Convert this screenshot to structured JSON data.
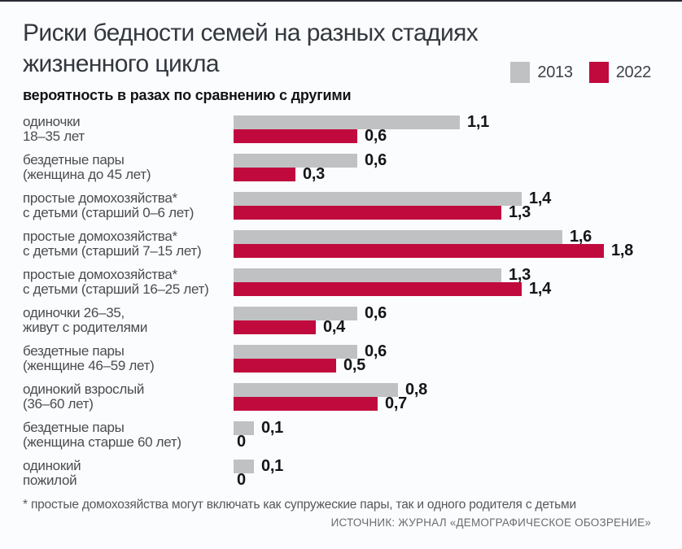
{
  "page": {
    "title_line1": "Риски бедности семей на разных стадиях",
    "title_line2": "жизненного цикла",
    "subtitle": "вероятность в разах по сравнению с другими",
    "footnote": "* простые домохозяйства могут включать как супружеские пары, так и одного родителя с детьми",
    "source": "ИСТОЧНИК: ЖУРНАЛ «ДЕМОГРАФИЧЕСКОЕ ОБОЗРЕНИЕ»",
    "colors": {
      "background": "#fbfcfd",
      "top_rule": "#272b34",
      "bar_2013": "#c0c1c3",
      "bar_2022": "#c00a3e"
    }
  },
  "legend": {
    "items": [
      {
        "label": "2013",
        "color": "#c0c1c3"
      },
      {
        "label": "2022",
        "color": "#c00a3e"
      }
    ]
  },
  "chart_data": {
    "type": "bar",
    "orientation": "horizontal",
    "title": "Риски бедности семей на разных стадиях жизненного цикла",
    "subtitle": "вероятность в разах по сравнению с другими",
    "xlim": [
      0,
      1.8
    ],
    "grid": false,
    "legend_position": "top-right",
    "categories": [
      "одиночки\n18–35 лет",
      "бездетные пары\n(женщина до 45 лет)",
      "простые домохозяйства*\nс детьми (старший 0–6 лет)",
      "простые домохозяйства*\nс детьми (старший 7–15 лет)",
      "простые домохозяйства*\nс детьми (старший 16–25 лет)",
      "одиночки 26–35,\nживут с родителями",
      "бездетные пары\n(женщине 46–59 лет)",
      "одинокий взрослый\n(36–60 лет)",
      "бездетные пары\n(женщина старше 60 лет)",
      "одинокий\nпожилой"
    ],
    "series": [
      {
        "name": "2013",
        "color": "#c0c1c3",
        "values": [
          1.1,
          0.6,
          1.4,
          1.6,
          1.3,
          0.6,
          0.6,
          0.8,
          0.1,
          0.1
        ],
        "labels": [
          "1,1",
          "0,6",
          "1,4",
          "1,6",
          "1,3",
          "0,6",
          "0,6",
          "0,8",
          "0,1",
          "0,1"
        ]
      },
      {
        "name": "2022",
        "color": "#c00a3e",
        "values": [
          0.6,
          0.3,
          1.3,
          1.8,
          1.4,
          0.4,
          0.5,
          0.7,
          0,
          0
        ],
        "labels": [
          "0,6",
          "0,3",
          "1,3",
          "1,8",
          "1,4",
          "0,4",
          "0,5",
          "0,7",
          "0",
          "0"
        ]
      }
    ]
  }
}
